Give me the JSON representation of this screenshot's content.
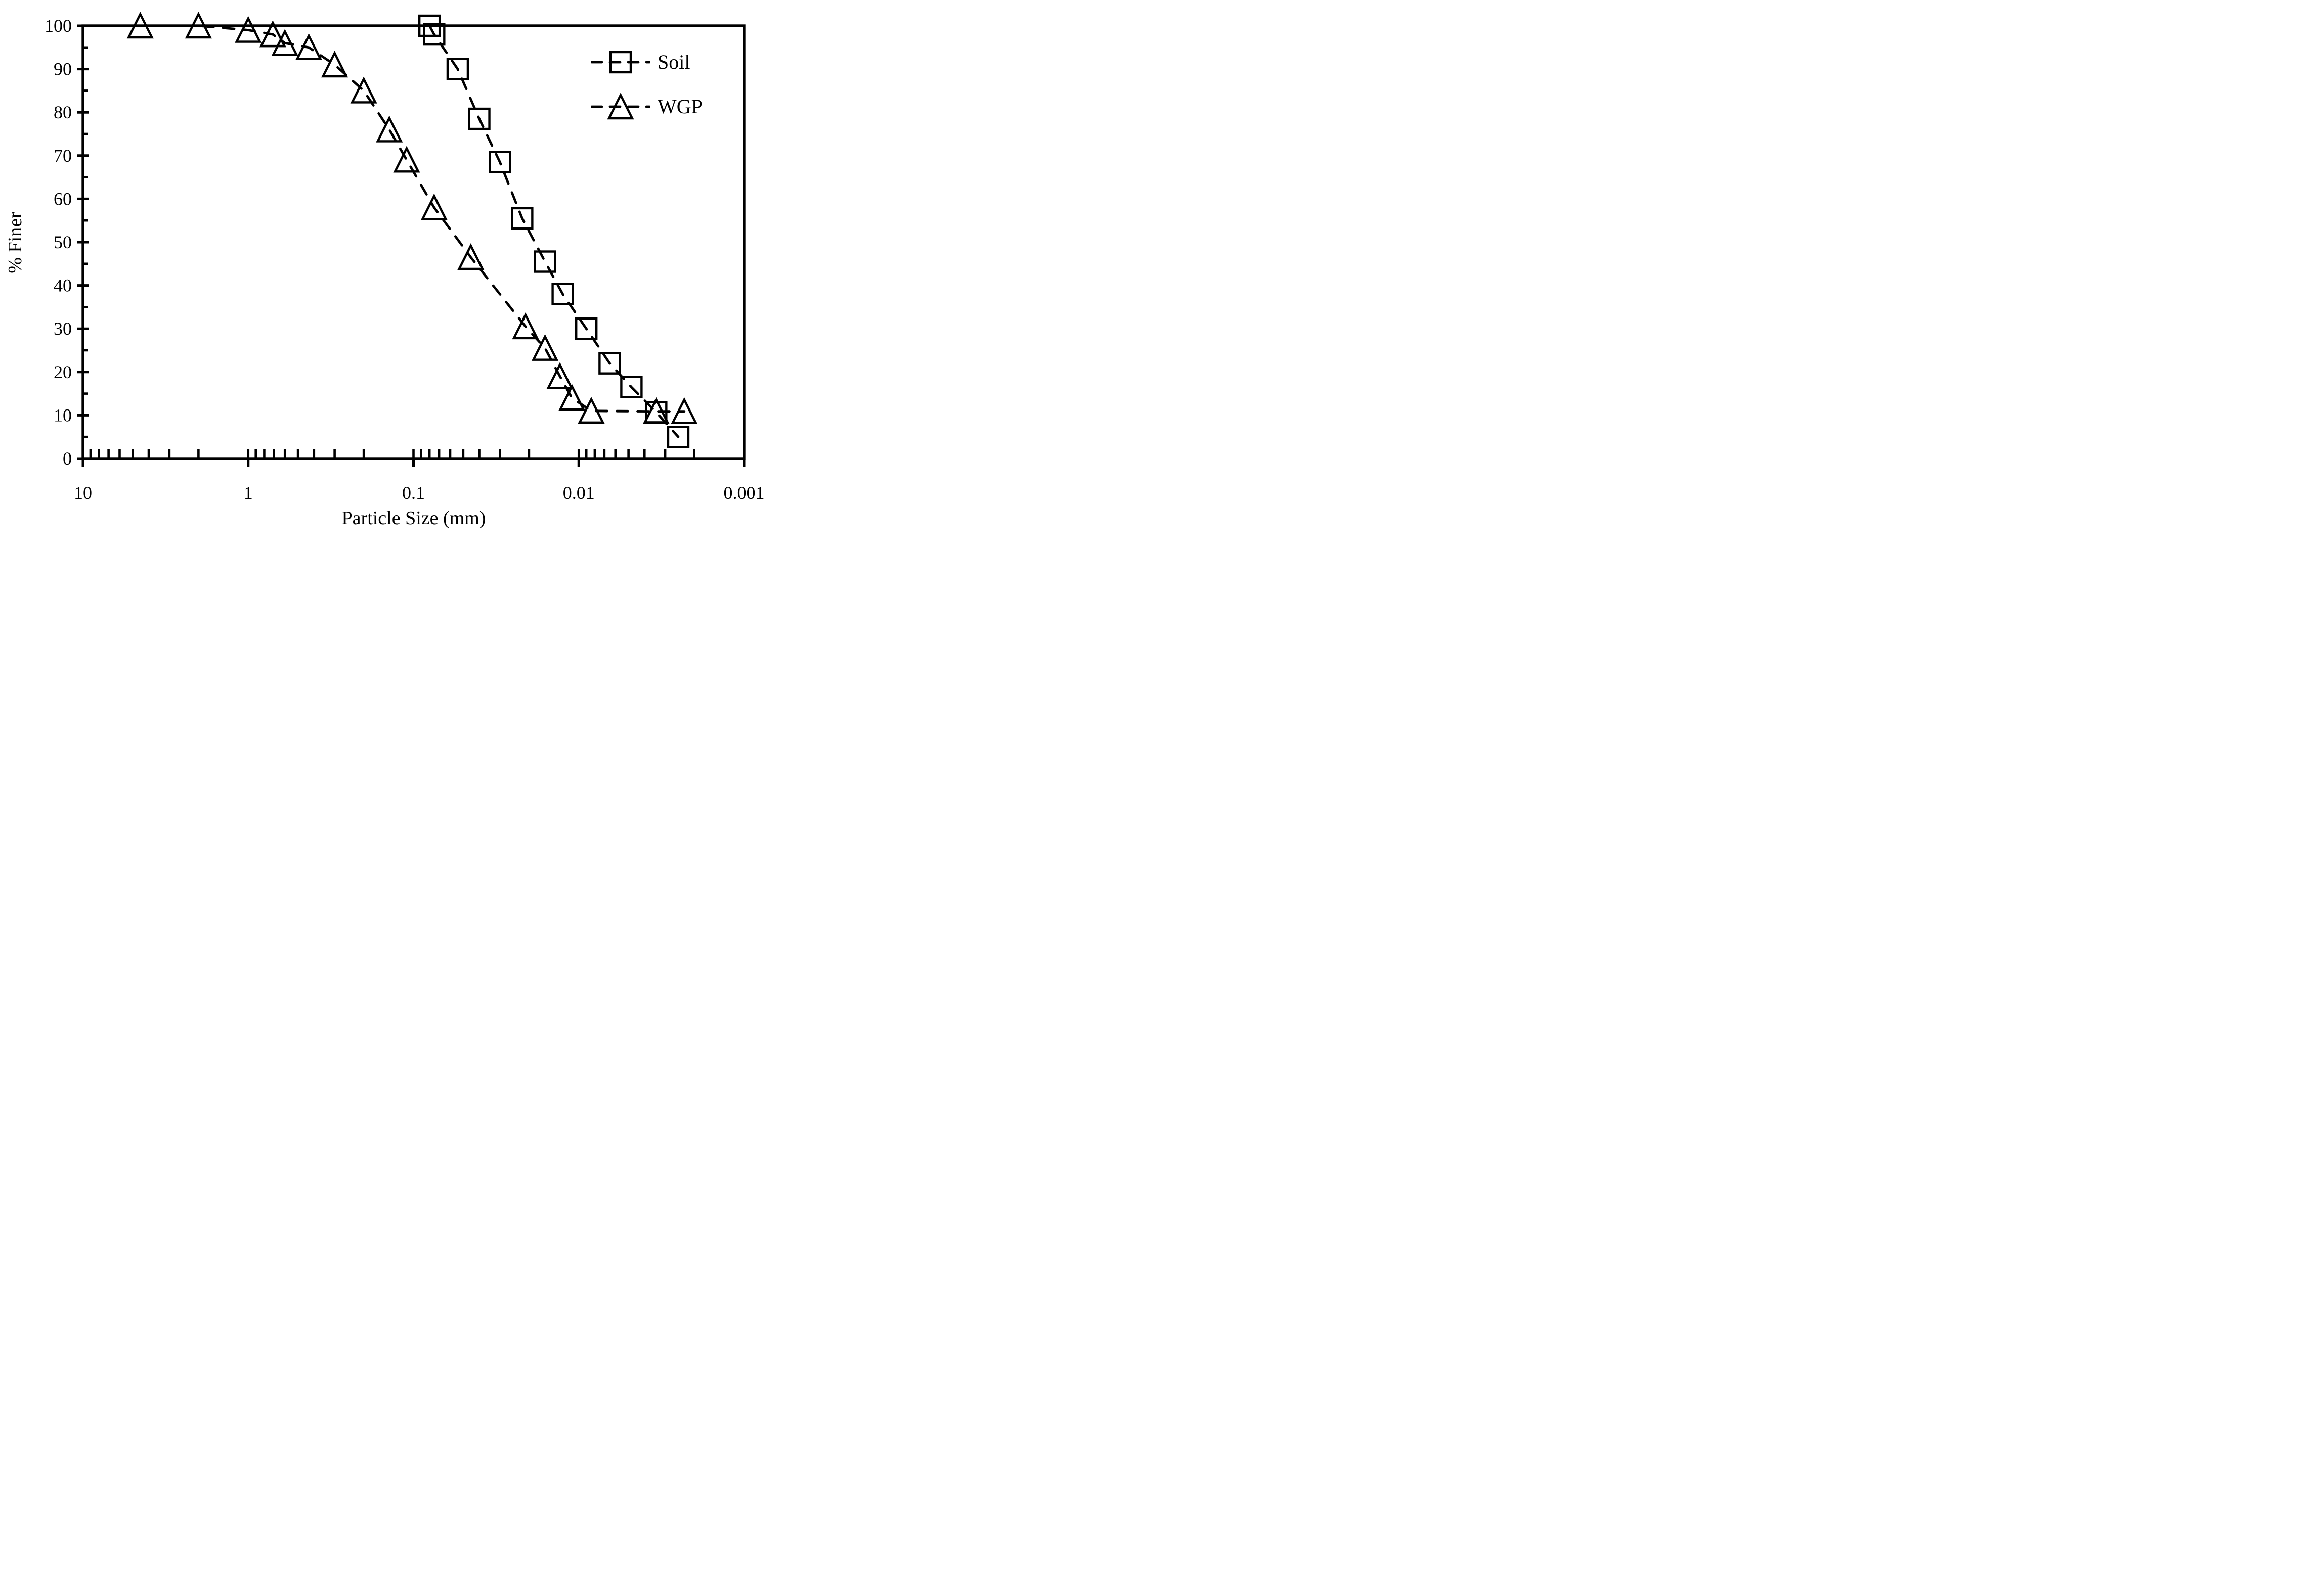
{
  "chart_data": {
    "type": "line",
    "title": "",
    "xlabel": "Particle Size (mm)",
    "ylabel": "% Finer",
    "x_scale": "log-reversed",
    "xlim": [
      10,
      0.001
    ],
    "ylim": [
      0,
      100
    ],
    "grid": "off",
    "frame": "full-box",
    "x_ticks": [
      {
        "label": "10",
        "value": 10
      },
      {
        "label": "1",
        "value": 1
      },
      {
        "label": "0.1",
        "value": 0.1
      },
      {
        "label": "0.01",
        "value": 0.01
      },
      {
        "label": "0.001",
        "value": 0.001
      }
    ],
    "y_ticks": [
      0,
      10,
      20,
      30,
      40,
      50,
      60,
      70,
      80,
      90,
      100
    ],
    "y_minor_step": 5,
    "legend_position": "top-right",
    "colors": {
      "foreground": "#000000",
      "background": "#ffffff"
    },
    "series": [
      {
        "name": "Soil",
        "marker": "square",
        "line_style": "dashed",
        "points": [
          [
            0.08,
            100
          ],
          [
            0.075,
            98
          ],
          [
            0.054,
            90
          ],
          [
            0.04,
            78.5
          ],
          [
            0.03,
            68.5
          ],
          [
            0.022,
            55.5
          ],
          [
            0.016,
            45.5
          ],
          [
            0.0125,
            38
          ],
          [
            0.009,
            30
          ],
          [
            0.0065,
            22
          ],
          [
            0.0048,
            16.5
          ],
          [
            0.0034,
            10.7
          ],
          [
            0.0025,
            5
          ]
        ]
      },
      {
        "name": "WGP",
        "marker": "triangle",
        "line_style": "dashed",
        "points": [
          [
            4.5,
            100
          ],
          [
            2,
            100
          ],
          [
            1,
            99
          ],
          [
            0.71,
            98
          ],
          [
            0.6,
            96
          ],
          [
            0.43,
            95
          ],
          [
            0.3,
            91
          ],
          [
            0.2,
            85
          ],
          [
            0.14,
            76
          ],
          [
            0.11,
            69
          ],
          [
            0.075,
            58
          ],
          [
            0.045,
            46.5
          ],
          [
            0.021,
            30.5
          ],
          [
            0.016,
            25.5
          ],
          [
            0.013,
            19
          ],
          [
            0.011,
            14
          ],
          [
            0.0084,
            11
          ],
          [
            0.0034,
            10.9
          ],
          [
            0.0023,
            10.9
          ]
        ]
      }
    ]
  }
}
